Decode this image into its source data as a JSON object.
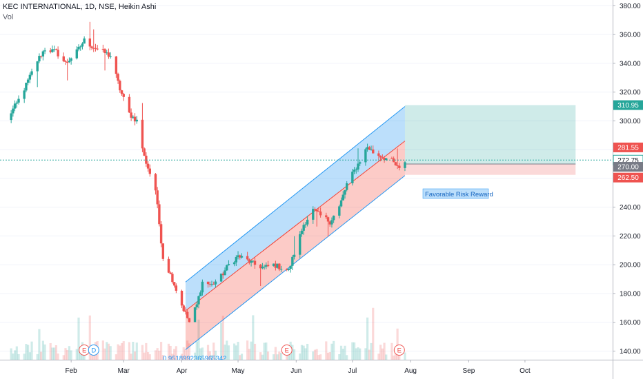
{
  "header": {
    "title": "KEC INTERNATIONAL, 1D, NSE, Heikin Ashi",
    "volume_label": "Vol"
  },
  "annotation": {
    "text": "Favorable Risk Reward",
    "fib_value": "0.9518992365965342"
  },
  "events": [
    {
      "label": "E",
      "date": "2019-02-08",
      "type": "earnings"
    },
    {
      "label": "D",
      "date": "2019-02-13",
      "type": "dividend"
    },
    {
      "label": "E",
      "date": "2019-05-27",
      "type": "earnings"
    },
    {
      "label": "E",
      "date": "2019-07-26",
      "type": "earnings"
    }
  ],
  "price_labels": [
    {
      "text": "310.95",
      "value": 310.95,
      "color": "#26a69a"
    },
    {
      "text": "281.55",
      "value": 281.55,
      "color": "#ef5350"
    },
    {
      "text": "272.75",
      "value": 272.75,
      "color": "#ffffff",
      "text_color": "#131722",
      "dashed": true
    },
    {
      "text": "270.00",
      "value": 270.0,
      "color": "#787b86"
    },
    {
      "text": "262.50",
      "value": 262.5,
      "color": "#ef5350"
    }
  ],
  "colors": {
    "up": "#26a69a",
    "down": "#ef5350",
    "channel_blue": "#2196f3",
    "channel_red": "#f44336",
    "axis_text": "#131722",
    "grid": "#f0f3fa"
  },
  "chart_data": {
    "type": "candlestick",
    "title": "KEC INTERNATIONAL, 1D, NSE, Heikin Ashi",
    "x_tick_labels": [
      "Feb",
      "Mar",
      "Apr",
      "May",
      "Jun",
      "Jul",
      "Aug",
      "Sep",
      "Oct"
    ],
    "y_tick_labels": [
      "140.00",
      "160.00",
      "180.00",
      "200.00",
      "220.00",
      "240.00",
      "260.00",
      "280.00",
      "300.00",
      "320.00",
      "340.00",
      "360.00",
      "380.00"
    ],
    "ylim": [
      134,
      384
    ],
    "xlim": [
      "2018-12-28",
      "2019-10-22"
    ],
    "series_path": [
      [
        "2018-12-28",
        300
      ],
      [
        "2019-01-03",
        312
      ],
      [
        "2019-01-08",
        325
      ],
      [
        "2019-01-14",
        342
      ],
      [
        "2019-01-18",
        350
      ],
      [
        "2019-01-24",
        348
      ],
      [
        "2019-01-29",
        340
      ],
      [
        "2019-02-04",
        348
      ],
      [
        "2019-02-08",
        356
      ],
      [
        "2019-02-12",
        352
      ],
      [
        "2019-02-18",
        348
      ],
      [
        "2019-02-22",
        345
      ],
      [
        "2019-02-27",
        322
      ],
      [
        "2019-03-04",
        305
      ],
      [
        "2019-03-08",
        300
      ],
      [
        "2019-03-12",
        275
      ],
      [
        "2019-03-18",
        252
      ],
      [
        "2019-03-22",
        205
      ],
      [
        "2019-03-27",
        190
      ],
      [
        "2019-04-01",
        172
      ],
      [
        "2019-04-05",
        160
      ],
      [
        "2019-04-09",
        172
      ],
      [
        "2019-04-12",
        188
      ],
      [
        "2019-04-17",
        186
      ],
      [
        "2019-04-22",
        192
      ],
      [
        "2019-04-26",
        200
      ],
      [
        "2019-05-01",
        206
      ],
      [
        "2019-05-06",
        203
      ],
      [
        "2019-05-10",
        200
      ],
      [
        "2019-05-15",
        198
      ],
      [
        "2019-05-20",
        200
      ],
      [
        "2019-05-24",
        198
      ],
      [
        "2019-05-28",
        196
      ],
      [
        "2019-06-01",
        212
      ],
      [
        "2019-06-05",
        228
      ],
      [
        "2019-06-10",
        238
      ],
      [
        "2019-06-14",
        234
      ],
      [
        "2019-06-19",
        230
      ],
      [
        "2019-06-24",
        240
      ],
      [
        "2019-06-28",
        256
      ],
      [
        "2019-07-04",
        270
      ],
      [
        "2019-07-09",
        282
      ],
      [
        "2019-07-12",
        278
      ],
      [
        "2019-07-17",
        275
      ],
      [
        "2019-07-22",
        272
      ],
      [
        "2019-07-26",
        266
      ],
      [
        "2019-07-29",
        272
      ]
    ],
    "regression_channel": {
      "start": "2019-04-03",
      "end": "2019-07-29",
      "upper_start": 188,
      "upper_end": 310,
      "mid_start": 168,
      "mid_end": 286,
      "lower_start": 141,
      "lower_end": 262
    },
    "long_position": {
      "start": "2019-07-29",
      "end": "2019-10-28",
      "entry": 270.0,
      "target": 310.95,
      "stop": 262.5
    }
  }
}
